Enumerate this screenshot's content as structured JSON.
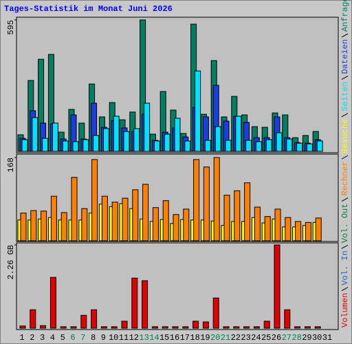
{
  "chart_data": [
    {
      "type": "bar",
      "title": "Tages-Statistik im Monat Juni 2026",
      "categories": [
        "1",
        "2",
        "3",
        "4",
        "5",
        "6",
        "7",
        "8",
        "9",
        "10",
        "11",
        "12",
        "13",
        "14",
        "15",
        "16",
        "17",
        "18",
        "19",
        "20",
        "21",
        "22",
        "23",
        "24",
        "25",
        "26",
        "27",
        "28",
        "29",
        "30",
        "31"
      ],
      "series": [
        {
          "name": "Anfragen",
          "color": "#008060",
          "values": [
            75,
            321,
            417,
            439,
            87,
            190,
            128,
            305,
            156,
            221,
            143,
            178,
            595,
            78,
            271,
            187,
            81,
            576,
            168,
            411,
            156,
            249,
            165,
            112,
            109,
            174,
            165,
            62,
            72,
            90,
            null
          ]
        },
        {
          "name": "Dateien",
          "color": "#1a3de0",
          "values": [
            59,
            184,
            128,
            125,
            56,
            165,
            56,
            218,
            109,
            140,
            106,
            90,
            168,
            50,
            87,
            106,
            65,
            199,
            156,
            299,
            137,
            159,
            131,
            62,
            62,
            156,
            62,
            40,
            37,
            53,
            null
          ]
        },
        {
          "name": "Seiten",
          "color": "#00e0ff",
          "values": [
            53,
            153,
            59,
            128,
            47,
            44,
            53,
            72,
            103,
            159,
            90,
            103,
            218,
            47,
            78,
            150,
            47,
            364,
            50,
            112,
            50,
            159,
            50,
            44,
            53,
            84,
            56,
            37,
            34,
            47,
            null
          ]
        }
      ],
      "ylim": [
        0,
        595
      ],
      "yticks": [
        595
      ]
    },
    {
      "type": "bar",
      "categories": [
        "1",
        "2",
        "3",
        "4",
        "5",
        "6",
        "7",
        "8",
        "9",
        "10",
        "11",
        "12",
        "13",
        "14",
        "15",
        "16",
        "17",
        "18",
        "19",
        "20",
        "21",
        "22",
        "23",
        "24",
        "25",
        "26",
        "27",
        "28",
        "29",
        "30",
        "31"
      ],
      "series": [
        {
          "name": "Besuche",
          "color": "#ffff00",
          "values": [
            42,
            42,
            44,
            47,
            42,
            42,
            42,
            56,
            74,
            69,
            75,
            65,
            44,
            39,
            43,
            35,
            43,
            42,
            42,
            40,
            31,
            39,
            39,
            47,
            36,
            44,
            28,
            28,
            31,
            37,
            null
          ]
        },
        {
          "name": "Rechner",
          "color": "#ff8000",
          "values": [
            56,
            61,
            60,
            90,
            57,
            128,
            65,
            164,
            90,
            78,
            86,
            103,
            114,
            67,
            81,
            53,
            64,
            164,
            149,
            168,
            92,
            101,
            117,
            68,
            49,
            64,
            47,
            39,
            37,
            46,
            null
          ]
        }
      ],
      "ylim": [
        0,
        168
      ],
      "yticks": [
        168
      ]
    },
    {
      "type": "bar",
      "categories": [
        "1",
        "2",
        "3",
        "4",
        "5",
        "6",
        "7",
        "8",
        "9",
        "10",
        "11",
        "12",
        "13",
        "14",
        "15",
        "16",
        "17",
        "18",
        "19",
        "20",
        "21",
        "22",
        "23",
        "24",
        "25",
        "26",
        "27",
        "28",
        "29",
        "30",
        "31"
      ],
      "label_colors": [
        "#000000",
        "#000000",
        "#000000",
        "#000000",
        "#000000",
        "#00805c",
        "#00805c",
        "#000000",
        "#000000",
        "#000000",
        "#000000",
        "#000000",
        "#00805c",
        "#00805c",
        "#000000",
        "#000000",
        "#000000",
        "#000000",
        "#000000",
        "#00805c",
        "#00805c",
        "#000000",
        "#000000",
        "#000000",
        "#000000",
        "#000000",
        "#00805c",
        "#00805c",
        "#000000",
        "#000000",
        "#000000"
      ],
      "series": [
        {
          "name": "Vol. Out",
          "color": "#008040",
          "values": [
            null,
            null,
            null,
            null,
            null,
            null,
            null,
            null,
            null,
            null,
            null,
            null,
            null,
            null,
            null,
            null,
            null,
            null,
            null,
            null,
            null,
            null,
            null,
            null,
            null,
            null,
            null,
            null,
            null,
            null,
            null
          ]
        },
        {
          "name": "Vol. In",
          "color": "#2060c0",
          "values": [
            null,
            null,
            null,
            null,
            null,
            null,
            null,
            null,
            null,
            null,
            null,
            null,
            null,
            null,
            null,
            null,
            null,
            null,
            null,
            null,
            null,
            null,
            null,
            null,
            null,
            null,
            null,
            null,
            null,
            null,
            null
          ]
        },
        {
          "name": "Volumen",
          "color": "#e00000",
          "values": [
            0.06,
            0.5,
            0.07,
            1.38,
            0.04,
            0.04,
            0.35,
            0.5,
            0.04,
            0.04,
            0.19,
            1.36,
            1.29,
            0.04,
            0.04,
            0.04,
            0.04,
            0.19,
            0.17,
            0.82,
            0.04,
            0.04,
            0.04,
            0.04,
            0.19,
            2.26,
            0.5,
            0.04,
            0.04,
            0.04,
            null
          ]
        }
      ],
      "ylim": [
        0,
        2.26
      ],
      "yticks": [
        {
          "value": 2.26,
          "label": "2.26 GB"
        }
      ]
    }
  ]
}
